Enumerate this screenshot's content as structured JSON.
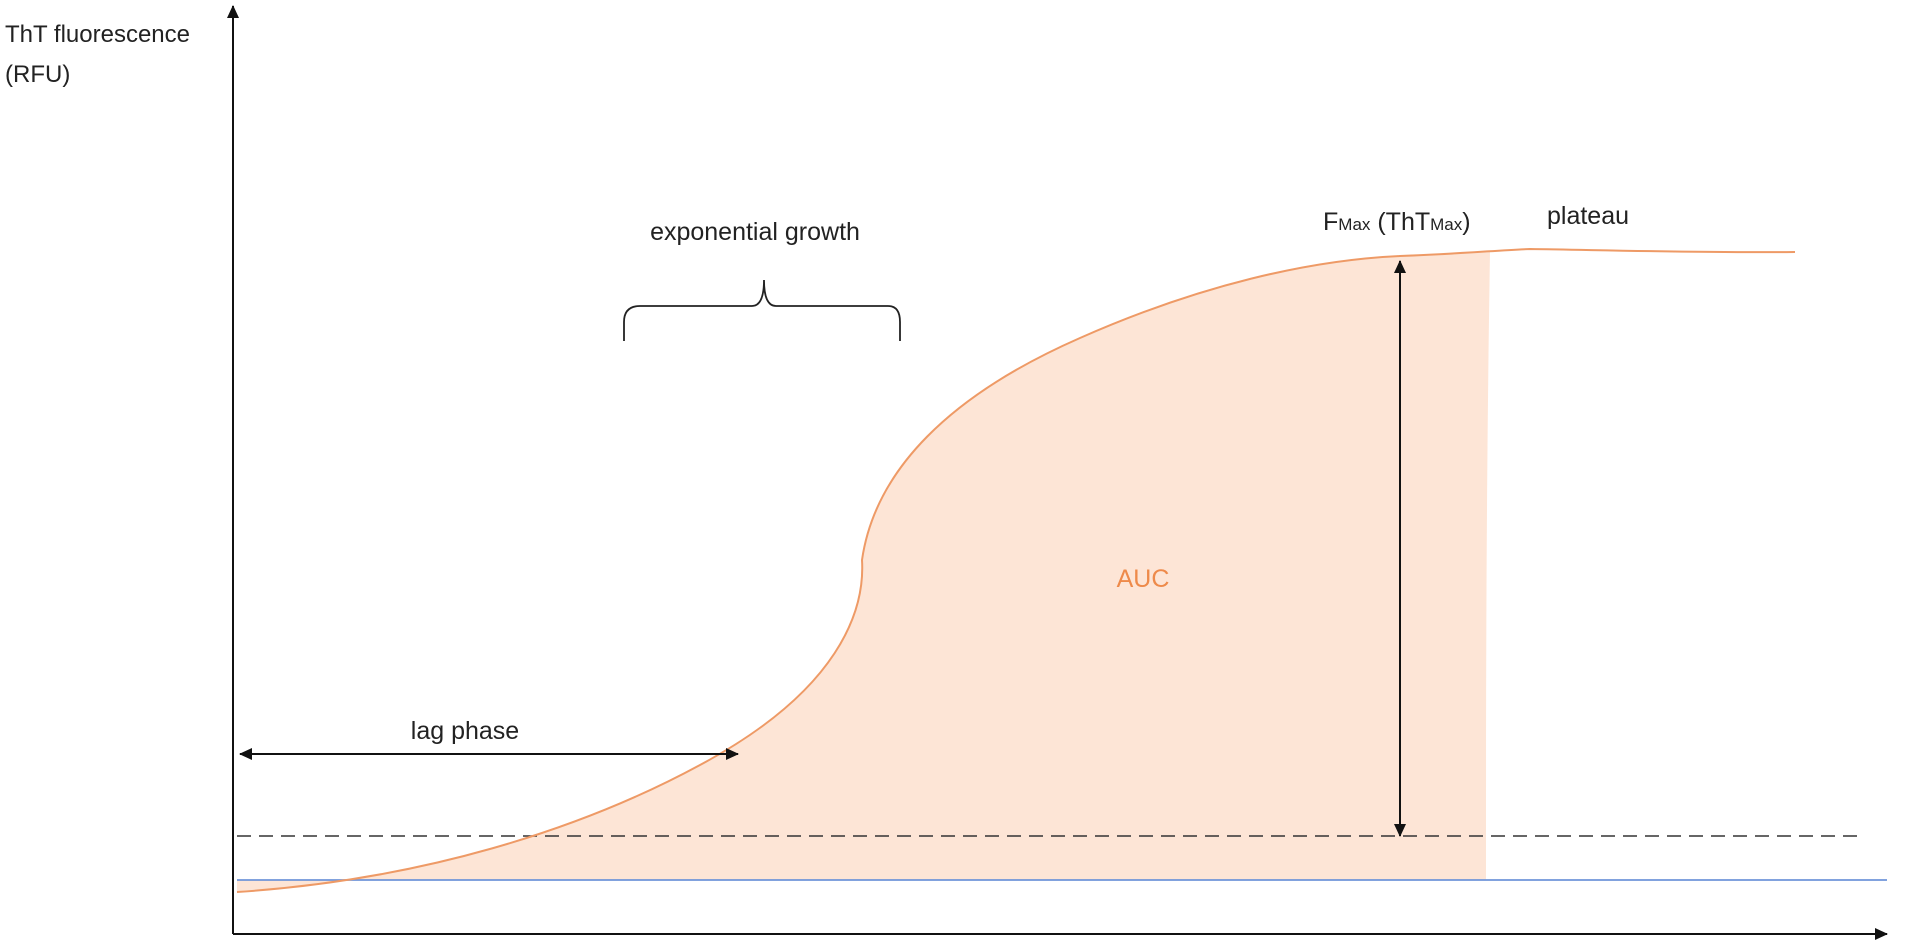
{
  "labels": {
    "y_axis_line1": "ThT fluorescence",
    "y_axis_line2": "(RFU)",
    "exponential_growth": "exponential growth",
    "lag_phase": "lag phase",
    "auc": "AUC",
    "plateau": "plateau",
    "fmax_F": "F",
    "fmax_sub1": "Max",
    "fmax_mid": " (ThT",
    "fmax_sub2": "Max",
    "fmax_end": ")"
  },
  "colors": {
    "axis": "#111111",
    "curve": "#ee9a66",
    "auc_fill": "#fde5d6",
    "auc_text": "#ee8a4a",
    "baseline": "#6f95d9",
    "threshold": "#333333",
    "annotation": "#111111"
  }
}
